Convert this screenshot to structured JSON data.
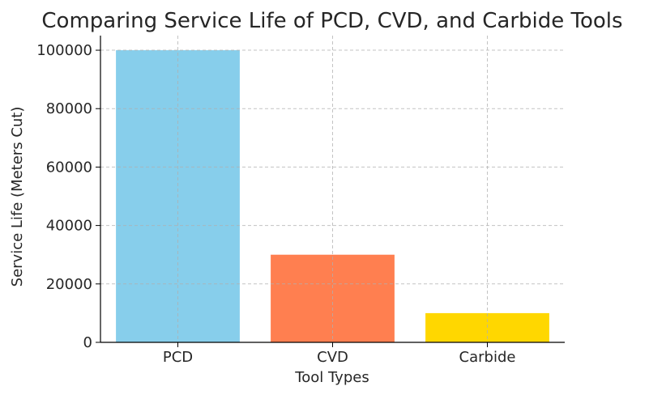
{
  "chart_data": {
    "type": "bar",
    "title": "Comparing Service Life of PCD, CVD, and Carbide Tools",
    "xlabel": "Tool Types",
    "ylabel": "Service Life (Meters Cut)",
    "categories": [
      "PCD",
      "CVD",
      "Carbide"
    ],
    "values": [
      100000,
      30000,
      10000
    ],
    "colors": [
      "#87ceeb",
      "#ff7f50",
      "#ffd700"
    ],
    "ylim": [
      0,
      105000
    ],
    "yticks": [
      0,
      20000,
      40000,
      60000,
      80000,
      100000
    ],
    "grid": true,
    "legend": "none"
  }
}
